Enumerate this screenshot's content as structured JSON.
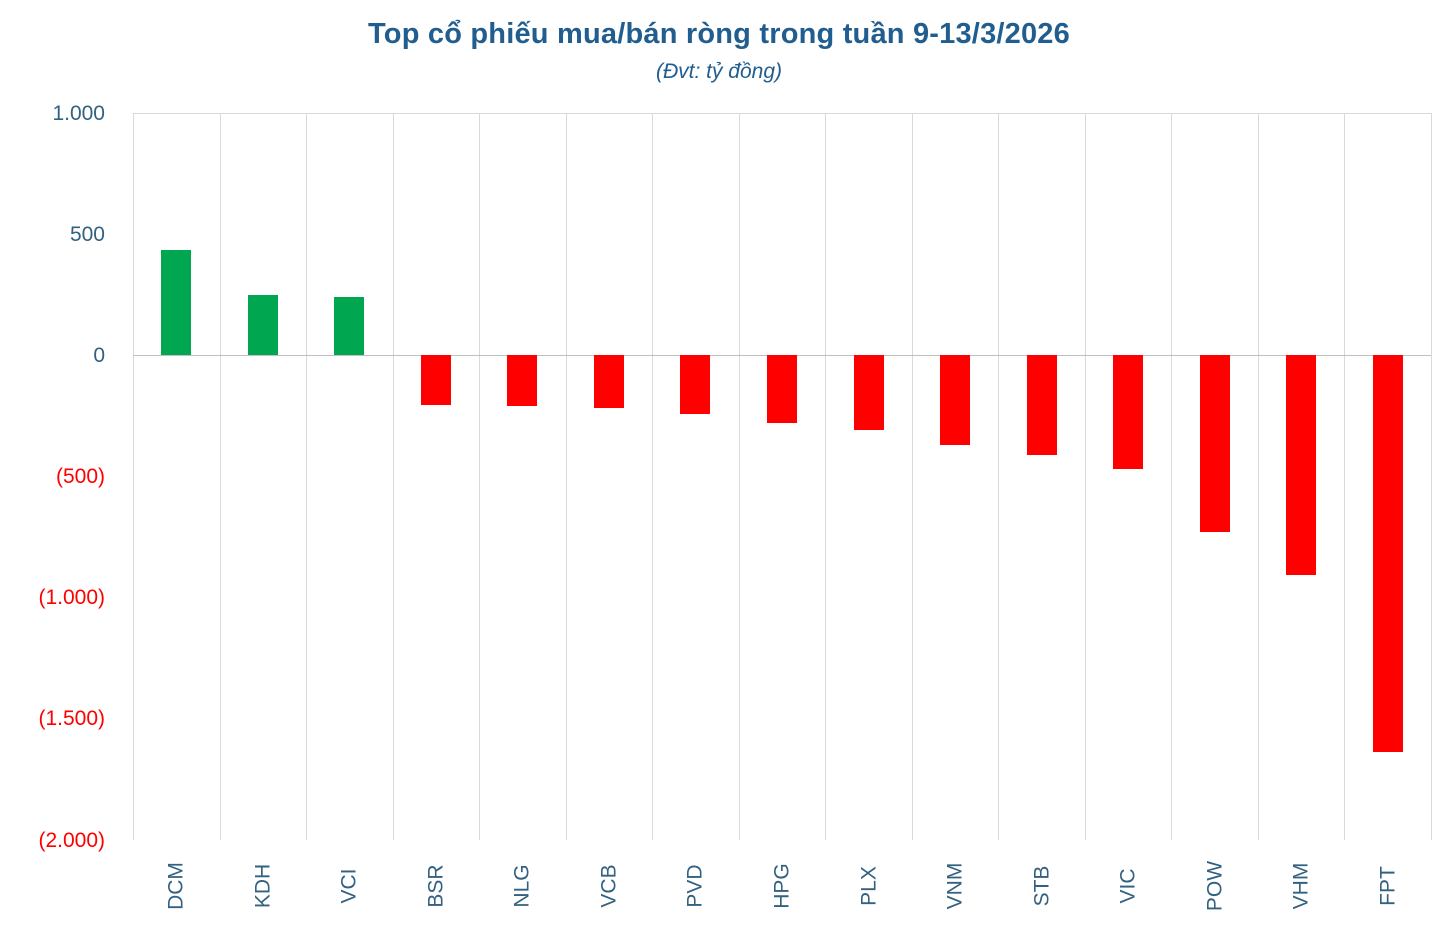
{
  "header": {
    "title": "Top cổ phiếu mua/bán ròng trong tuần 9-13/3/2026",
    "subtitle": "(Đvt: tỷ đồng)"
  },
  "colors": {
    "title_blue": "#215E8F",
    "axis_label_blue": "#336180",
    "negative_label_red": "#FF0000",
    "positive_bar_green": "#00A650",
    "negative_bar_red": "#FF0000",
    "gridline_gray": "#D9D9D9",
    "zero_line_gray": "#C0C0C0",
    "top_border_gray": "#D9D9D9"
  },
  "chart_data": {
    "type": "bar",
    "title": "Top cổ phiếu mua/bán ròng trong tuần 9-13/3/2026",
    "subtitle": "(Đvt: tỷ đồng)",
    "unit": "tỷ đồng",
    "categories": [
      "DCM",
      "KDH",
      "VCI",
      "BSR",
      "NLG",
      "VCB",
      "PVD",
      "HPG",
      "PLX",
      "VNM",
      "STB",
      "VIC",
      "POW",
      "VHM",
      "FPT"
    ],
    "values": [
      435,
      250,
      242,
      -207,
      -210,
      -218,
      -242,
      -280,
      -307,
      -370,
      -411,
      -469,
      -728,
      -906,
      -1638
    ],
    "xlabel": "",
    "ylabel": "",
    "ylim": [
      -2000,
      1000
    ],
    "yticks": [
      {
        "label": "1.000",
        "value": 1000
      },
      {
        "label": "500",
        "value": 500
      },
      {
        "label": "0",
        "value": 0
      },
      {
        "label": "(500)",
        "value": -500
      },
      {
        "label": "(1.000)",
        "value": -1000
      },
      {
        "label": "(1.500)",
        "value": -1500
      },
      {
        "label": "(2.000)",
        "value": -2000
      }
    ],
    "grid": "vertical-only",
    "legend": "none",
    "bar_color_rule": "green if value >= 0 else red"
  }
}
